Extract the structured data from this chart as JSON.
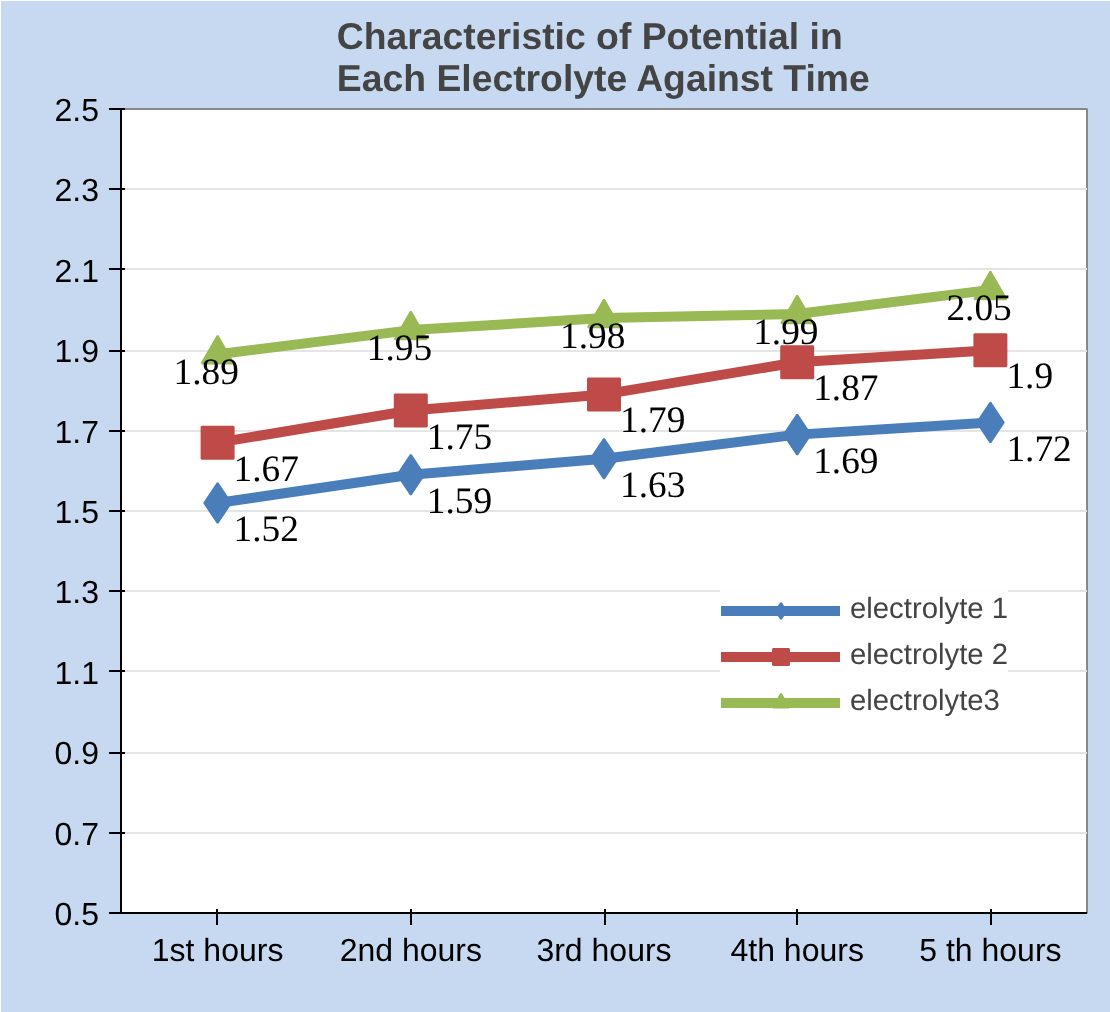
{
  "chart_data": {
    "type": "line",
    "title": "Characteristic of Potential in Each Electrolyte Against Time",
    "categories": [
      "1st hours",
      "2nd hours",
      "3rd hours",
      "4th hours",
      "5 th hours"
    ],
    "series": [
      {
        "name": "electrolyte 1",
        "color": "#4a7ebb",
        "marker": "diamond",
        "values": [
          1.52,
          1.59,
          1.63,
          1.69,
          1.72
        ]
      },
      {
        "name": "electrolyte 2",
        "color": "#be4b48",
        "marker": "square",
        "values": [
          1.67,
          1.75,
          1.79,
          1.87,
          1.9
        ]
      },
      {
        "name": "electrolyte3",
        "color": "#98b954",
        "marker": "triangle",
        "values": [
          1.89,
          1.95,
          1.98,
          1.99,
          2.05
        ]
      }
    ],
    "ylim": [
      0.5,
      2.5
    ],
    "yticks": [
      0.5,
      0.7,
      0.9,
      1.1,
      1.3,
      1.5,
      1.7,
      1.9,
      2.1,
      2.3,
      2.5
    ],
    "grid": "y",
    "legend": "right",
    "data_labels": true,
    "line_style": "solid"
  }
}
